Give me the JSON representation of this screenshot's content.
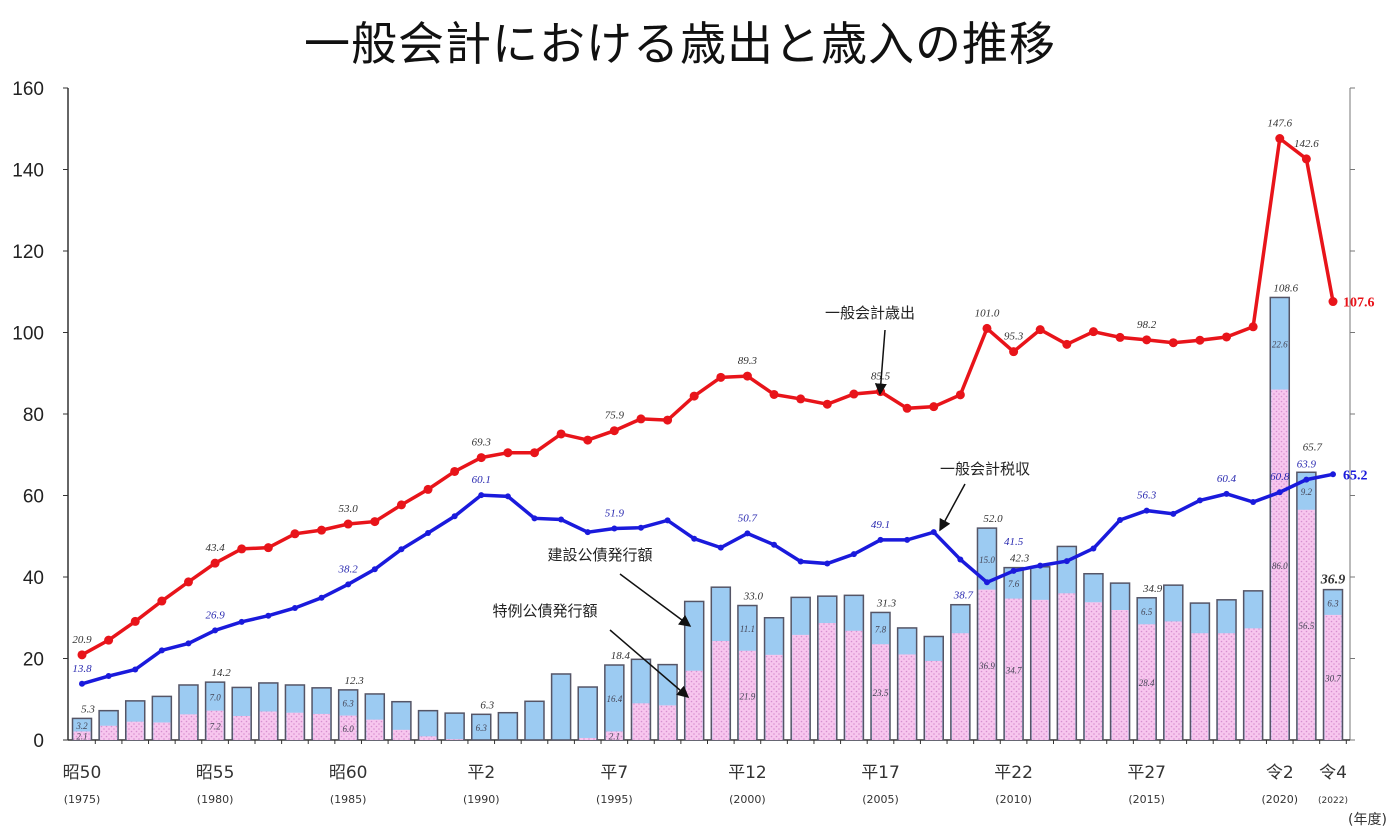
{
  "chart_data": {
    "type": "bar+line",
    "title": "一般会計における歳出と歳入の推移",
    "xlabel": "(年度)",
    "ylabel": "",
    "ylim": [
      0,
      160
    ],
    "yticks": [
      0,
      20,
      40,
      60,
      80,
      100,
      120,
      140,
      160
    ],
    "grid": false,
    "x": [
      1975,
      1976,
      1977,
      1978,
      1979,
      1980,
      1981,
      1982,
      1983,
      1984,
      1985,
      1986,
      1987,
      1988,
      1989,
      1990,
      1991,
      1992,
      1993,
      1994,
      1995,
      1996,
      1997,
      1998,
      1999,
      2000,
      2001,
      2002,
      2003,
      2004,
      2005,
      2006,
      2007,
      2008,
      2009,
      2010,
      2011,
      2012,
      2013,
      2014,
      2015,
      2016,
      2017,
      2018,
      2019,
      2020,
      2021,
      2022
    ],
    "xtick_labels": [
      {
        "year": 1975,
        "era": "昭50",
        "label": "(1975)"
      },
      {
        "year": 1980,
        "era": "昭55",
        "label": "(1980)"
      },
      {
        "year": 1985,
        "era": "昭60",
        "label": "(1985)"
      },
      {
        "year": 1990,
        "era": "平2",
        "label": "(1990)"
      },
      {
        "year": 1995,
        "era": "平7",
        "label": "(1995)"
      },
      {
        "year": 2000,
        "era": "平12",
        "label": "(2000)"
      },
      {
        "year": 2005,
        "era": "平17",
        "label": "(2005)"
      },
      {
        "year": 2010,
        "era": "平22",
        "label": "(2010)"
      },
      {
        "year": 2015,
        "era": "平27",
        "label": "(2015)"
      },
      {
        "year": 2020,
        "era": "令2",
        "label": "(2020)"
      },
      {
        "year": 2022,
        "era": "令4",
        "label": "(2022)"
      }
    ],
    "series": [
      {
        "name": "一般会計歳出",
        "type": "line",
        "color": "#e8141a",
        "values": [
          20.9,
          24.5,
          29.1,
          34.1,
          38.8,
          43.4,
          46.9,
          47.2,
          50.6,
          51.5,
          53.0,
          53.6,
          57.7,
          61.5,
          65.9,
          69.3,
          70.5,
          70.5,
          75.1,
          73.6,
          75.9,
          78.8,
          78.5,
          84.4,
          89.0,
          89.3,
          84.8,
          83.7,
          82.4,
          84.9,
          85.5,
          81.4,
          81.8,
          84.7,
          101.0,
          95.3,
          100.7,
          97.1,
          100.2,
          98.8,
          98.2,
          97.5,
          98.1,
          98.9,
          101.4,
          147.6,
          142.6,
          107.6
        ],
        "labels": [
          {
            "year": 1975,
            "text": "20.9"
          },
          {
            "year": 1980,
            "text": "43.4"
          },
          {
            "year": 1985,
            "text": "53.0"
          },
          {
            "year": 1990,
            "text": "69.3"
          },
          {
            "year": 1995,
            "text": "75.9"
          },
          {
            "year": 2000,
            "text": "89.3"
          },
          {
            "year": 2005,
            "text": "85.5"
          },
          {
            "year": 2009,
            "text": "101.0"
          },
          {
            "year": 2010,
            "text": "95.3"
          },
          {
            "year": 2015,
            "text": "98.2"
          },
          {
            "year": 2020,
            "text": "147.6"
          },
          {
            "year": 2021,
            "text": "142.6"
          },
          {
            "year": 2022,
            "text": "107.6"
          }
        ],
        "annotation": "一般会計歳出"
      },
      {
        "name": "一般会計税収",
        "type": "line",
        "color": "#1a1adc",
        "values": [
          13.8,
          15.7,
          17.3,
          22.0,
          23.7,
          26.9,
          29.0,
          30.5,
          32.4,
          34.9,
          38.2,
          41.9,
          46.8,
          50.8,
          54.9,
          60.1,
          59.8,
          54.4,
          54.1,
          51.0,
          51.9,
          52.1,
          53.9,
          49.4,
          47.2,
          50.7,
          47.9,
          43.8,
          43.3,
          45.6,
          49.1,
          49.1,
          51.0,
          44.3,
          38.7,
          41.5,
          42.8,
          43.9,
          47.0,
          54.0,
          56.3,
          55.5,
          58.8,
          60.4,
          58.4,
          60.8,
          63.9,
          65.2
        ],
        "labels": [
          {
            "year": 1975,
            "text": "13.8"
          },
          {
            "year": 1980,
            "text": "26.9"
          },
          {
            "year": 1985,
            "text": "38.2"
          },
          {
            "year": 1990,
            "text": "60.1"
          },
          {
            "year": 1995,
            "text": "51.9"
          },
          {
            "year": 2000,
            "text": "50.7"
          },
          {
            "year": 2005,
            "text": "49.1"
          },
          {
            "year": 2009,
            "text": "38.7"
          },
          {
            "year": 2010,
            "text": "41.5"
          },
          {
            "year": 2015,
            "text": "56.3"
          },
          {
            "year": 2018,
            "text": "60.4"
          },
          {
            "year": 2020,
            "text": "60.8"
          },
          {
            "year": 2021,
            "text": "63.9"
          },
          {
            "year": 2022,
            "text": "65.2"
          }
        ],
        "annotation": "一般会計税収"
      },
      {
        "name": "特例公債発行額",
        "type": "bar",
        "color": "#f7c6ee",
        "values": [
          2.1,
          3.5,
          4.5,
          4.3,
          6.3,
          7.2,
          5.9,
          7.0,
          6.7,
          6.4,
          6.0,
          5.0,
          2.5,
          0.9,
          0.2,
          0,
          0,
          0,
          0,
          0.5,
          2.1,
          9.0,
          8.5,
          17.0,
          24.3,
          21.9,
          20.9,
          25.8,
          28.7,
          26.8,
          23.5,
          21.0,
          19.4,
          26.2,
          36.9,
          34.7,
          34.4,
          36.0,
          33.8,
          31.9,
          28.4,
          29.1,
          26.2,
          26.2,
          27.4,
          86.0,
          56.5,
          30.7
        ],
        "annotation": "特例公債発行額"
      },
      {
        "name": "建設公債発行額 (total bond issuance)",
        "type": "bar",
        "color": "#9ccbf2",
        "totals": [
          5.3,
          7.2,
          9.6,
          10.7,
          13.5,
          14.2,
          12.9,
          14.0,
          13.5,
          12.8,
          12.3,
          11.3,
          9.4,
          7.2,
          6.6,
          6.3,
          6.7,
          9.5,
          16.2,
          13.0,
          18.4,
          19.8,
          18.5,
          34.0,
          37.5,
          33.0,
          30.0,
          35.0,
          35.3,
          35.5,
          31.3,
          27.5,
          25.4,
          33.2,
          52.0,
          42.3,
          42.5,
          47.5,
          40.8,
          38.5,
          34.9,
          38.0,
          33.6,
          34.4,
          36.6,
          108.6,
          65.7,
          36.9
        ],
        "annotation": "建設公債発行額"
      }
    ],
    "bar_labels": [
      {
        "year": 1975,
        "total": "5.3",
        "construction": "3.2",
        "special": "2.1"
      },
      {
        "year": 1980,
        "total": "14.2",
        "construction": "7.0",
        "special": "7.2"
      },
      {
        "year": 1985,
        "total": "12.3",
        "construction": "6.3",
        "special": "6.0"
      },
      {
        "year": 1990,
        "total": "6.3",
        "construction": "6.3",
        "special": ""
      },
      {
        "year": 1995,
        "total": "18.4",
        "construction": "16.4",
        "special": "2.1"
      },
      {
        "year": 2000,
        "total": "33.0",
        "construction": "11.1",
        "special": "21.9"
      },
      {
        "year": 2005,
        "total": "31.3",
        "construction": "7.8",
        "special": "23.5"
      },
      {
        "year": 2009,
        "total": "52.0",
        "construction": "15.0",
        "special": "36.9"
      },
      {
        "year": 2010,
        "total": "42.3",
        "construction": "7.6",
        "special": "34.7"
      },
      {
        "year": 2015,
        "total": "34.9",
        "construction": "6.5",
        "special": "28.4"
      },
      {
        "year": 2020,
        "total": "108.6",
        "construction": "22.6",
        "special": "86.0"
      },
      {
        "year": 2021,
        "total": "65.7",
        "construction": "9.2",
        "special": "56.5"
      },
      {
        "year": 2022,
        "total": "36.9",
        "construction": "6.3",
        "special": "30.7"
      }
    ]
  }
}
